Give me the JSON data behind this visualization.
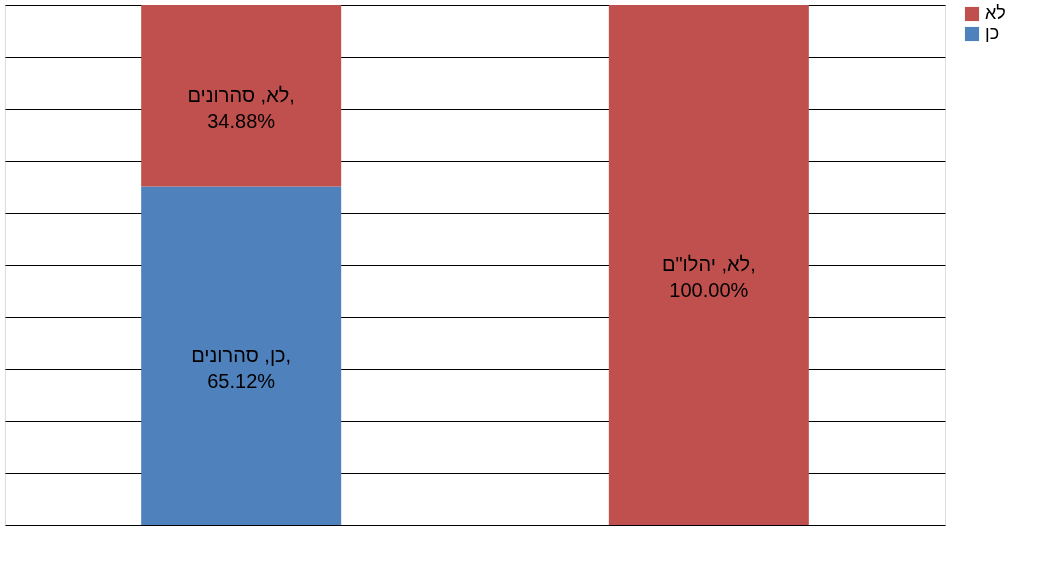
{
  "chart_data": {
    "type": "bar",
    "stacked": true,
    "categories": [
      null,
      null
    ],
    "series": [
      {
        "name": "כן",
        "color": "#4f81bd",
        "values": [
          65.12,
          null
        ],
        "value_labels": [
          "כן, סהרונים, 65.12%",
          null
        ]
      },
      {
        "name": "לא",
        "color": "#c0504d",
        "values": [
          34.88,
          100
        ],
        "value_labels": [
          "לא, סהרונים, 34.88%",
          "לא, יהלו\"ם, 100.00%"
        ]
      }
    ],
    "ylim": [
      0,
      100
    ],
    "yticks": [
      {
        "value": 0,
        "label": null
      },
      {
        "value": 10,
        "label": null
      },
      {
        "value": 20,
        "label": null
      },
      {
        "value": 30,
        "label": null
      },
      {
        "value": 40,
        "label": null
      },
      {
        "value": 50,
        "label": null
      },
      {
        "value": 60,
        "label": null
      },
      {
        "value": 70,
        "label": null
      },
      {
        "value": 80,
        "label": null
      },
      {
        "value": 90,
        "label": null
      },
      {
        "value": 100,
        "label": null
      }
    ],
    "grid": "y",
    "legend": "right",
    "tick_labels": false
  }
}
